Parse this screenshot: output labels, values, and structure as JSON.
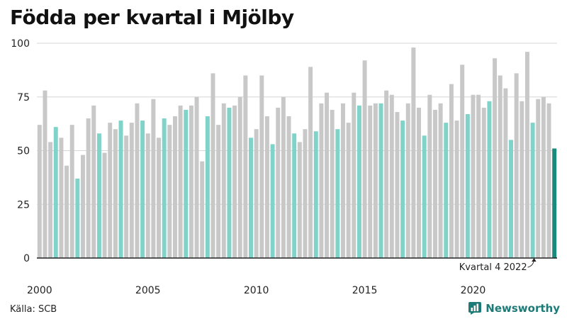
{
  "chart_data": {
    "type": "bar",
    "title": "Födda per kvartal i Mjölby",
    "xlabel": "",
    "ylabel": "",
    "ylim": [
      0,
      100
    ],
    "yticks": [
      "0",
      "25",
      "50",
      "75",
      "100"
    ],
    "xticks": [
      "2000",
      "2005",
      "2010",
      "2015",
      "2020"
    ],
    "start_year": 2000,
    "values": [
      62,
      78,
      54,
      61,
      56,
      43,
      62,
      37,
      48,
      65,
      71,
      58,
      49,
      63,
      60,
      64,
      57,
      63,
      72,
      64,
      58,
      74,
      56,
      65,
      62,
      66,
      71,
      69,
      71,
      75,
      45,
      66,
      86,
      62,
      72,
      70,
      71,
      75,
      85,
      56,
      60,
      85,
      66,
      53,
      70,
      75,
      66,
      58,
      54,
      60,
      89,
      59,
      72,
      77,
      69,
      60,
      72,
      63,
      77,
      71,
      92,
      71,
      72,
      72,
      78,
      76,
      68,
      64,
      72,
      98,
      70,
      57,
      76,
      69,
      72,
      63,
      81,
      64,
      90,
      67,
      76,
      76,
      70,
      73,
      93,
      85,
      79,
      55,
      86,
      73,
      96,
      63,
      74,
      75,
      72,
      51
    ],
    "colors": {
      "default": "#c8c8c8",
      "q2": "#7fd3c9",
      "latest": "#1b8a7e",
      "axis": "#222222",
      "grid": "#d6d6d6"
    },
    "annotation": "Kvartal 4 2022"
  },
  "footer": {
    "source": "Källa: SCB",
    "brand": "Newsworthy",
    "brand_icon": "bar-chart-icon"
  }
}
